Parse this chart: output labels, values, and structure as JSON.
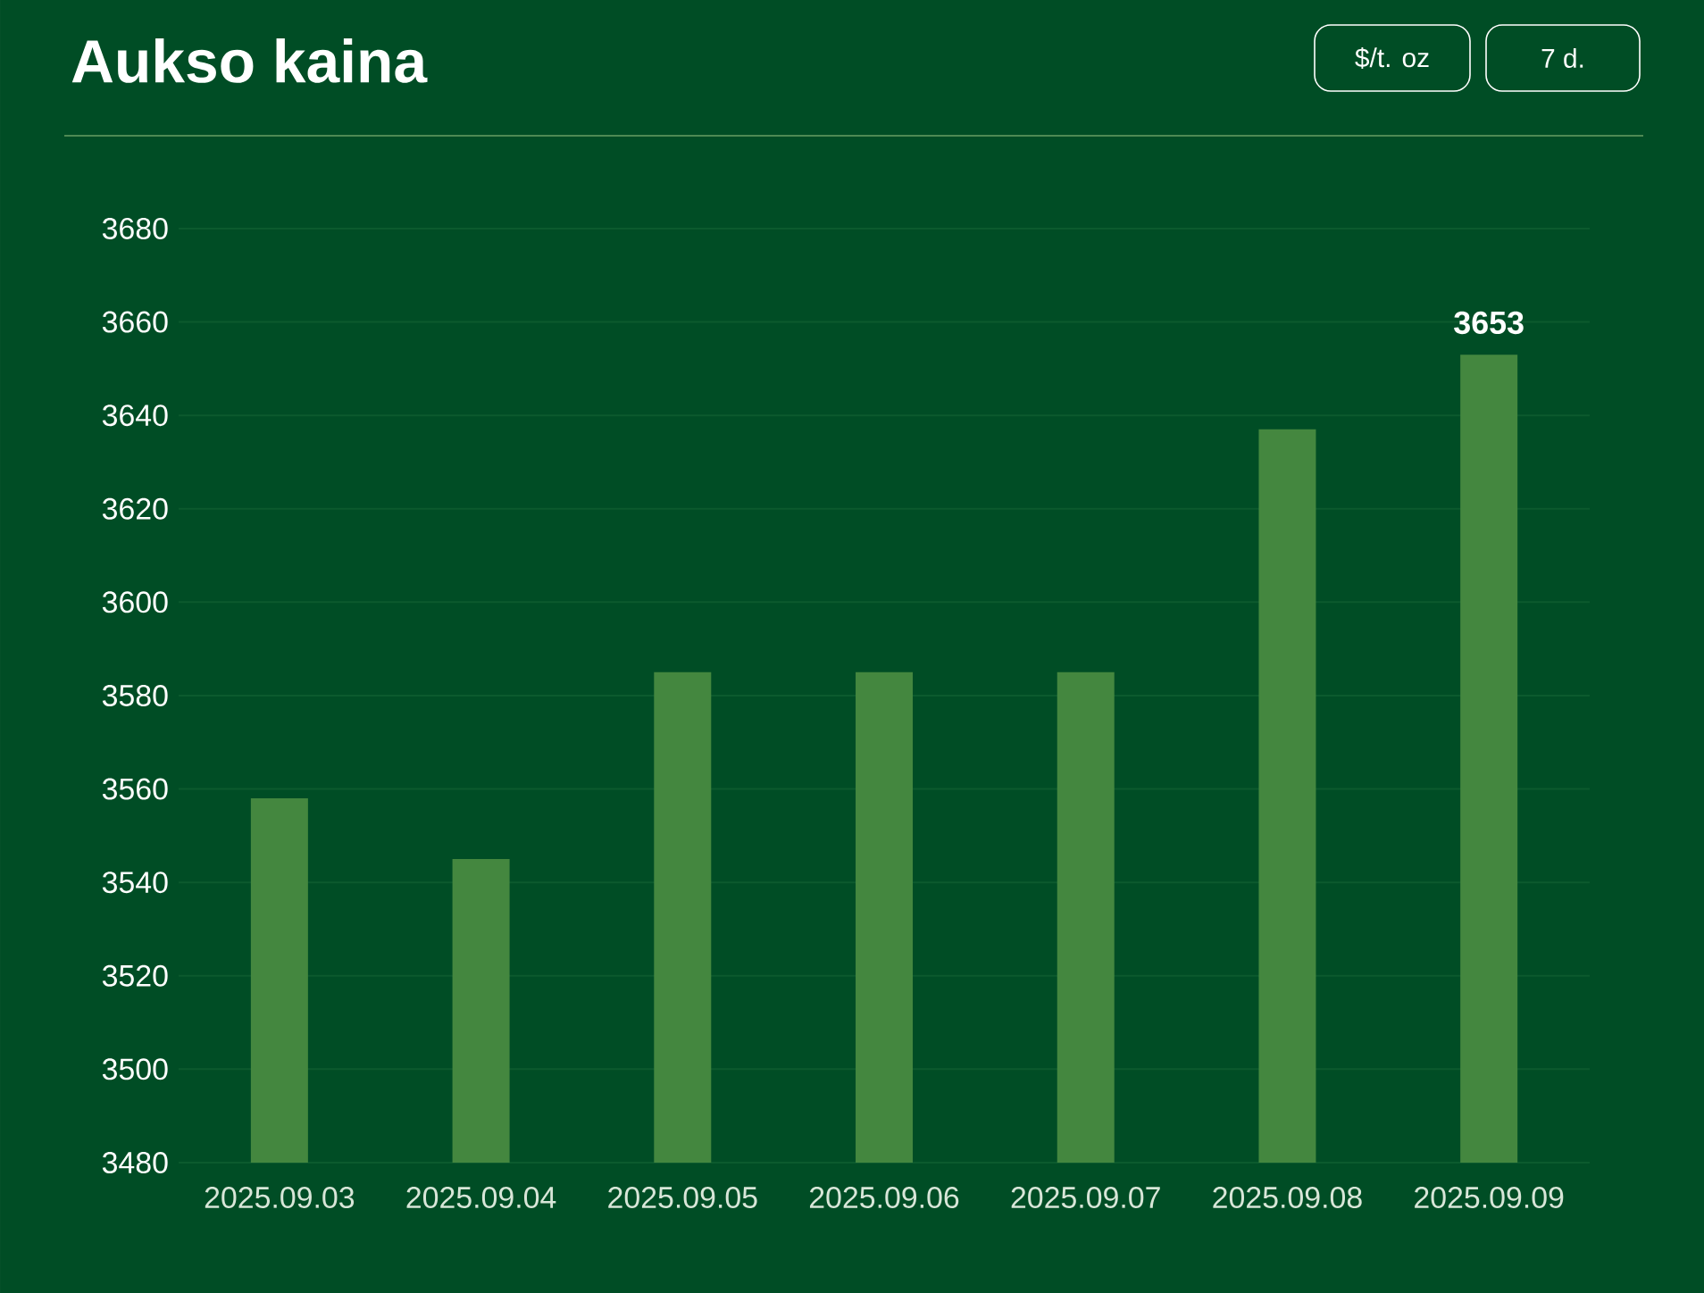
{
  "chart_data": {
    "type": "bar",
    "title": "Aukso kaina",
    "annotations": [
      "$/t. oz",
      "7 d."
    ],
    "categories": [
      "2025.09.03",
      "2025.09.04",
      "2025.09.05",
      "2025.09.06",
      "2025.09.07",
      "2025.09.08",
      "2025.09.09"
    ],
    "values": [
      3558,
      3545,
      3585,
      3585,
      3585,
      3637,
      3653
    ],
    "value_labels": [
      null,
      null,
      null,
      null,
      null,
      null,
      "3653"
    ],
    "color": "#44873f",
    "ylim": [
      3480,
      3680
    ],
    "yticks": [
      3480,
      3500,
      3520,
      3540,
      3560,
      3580,
      3600,
      3620,
      3640,
      3660,
      3680
    ],
    "grid": "y"
  }
}
